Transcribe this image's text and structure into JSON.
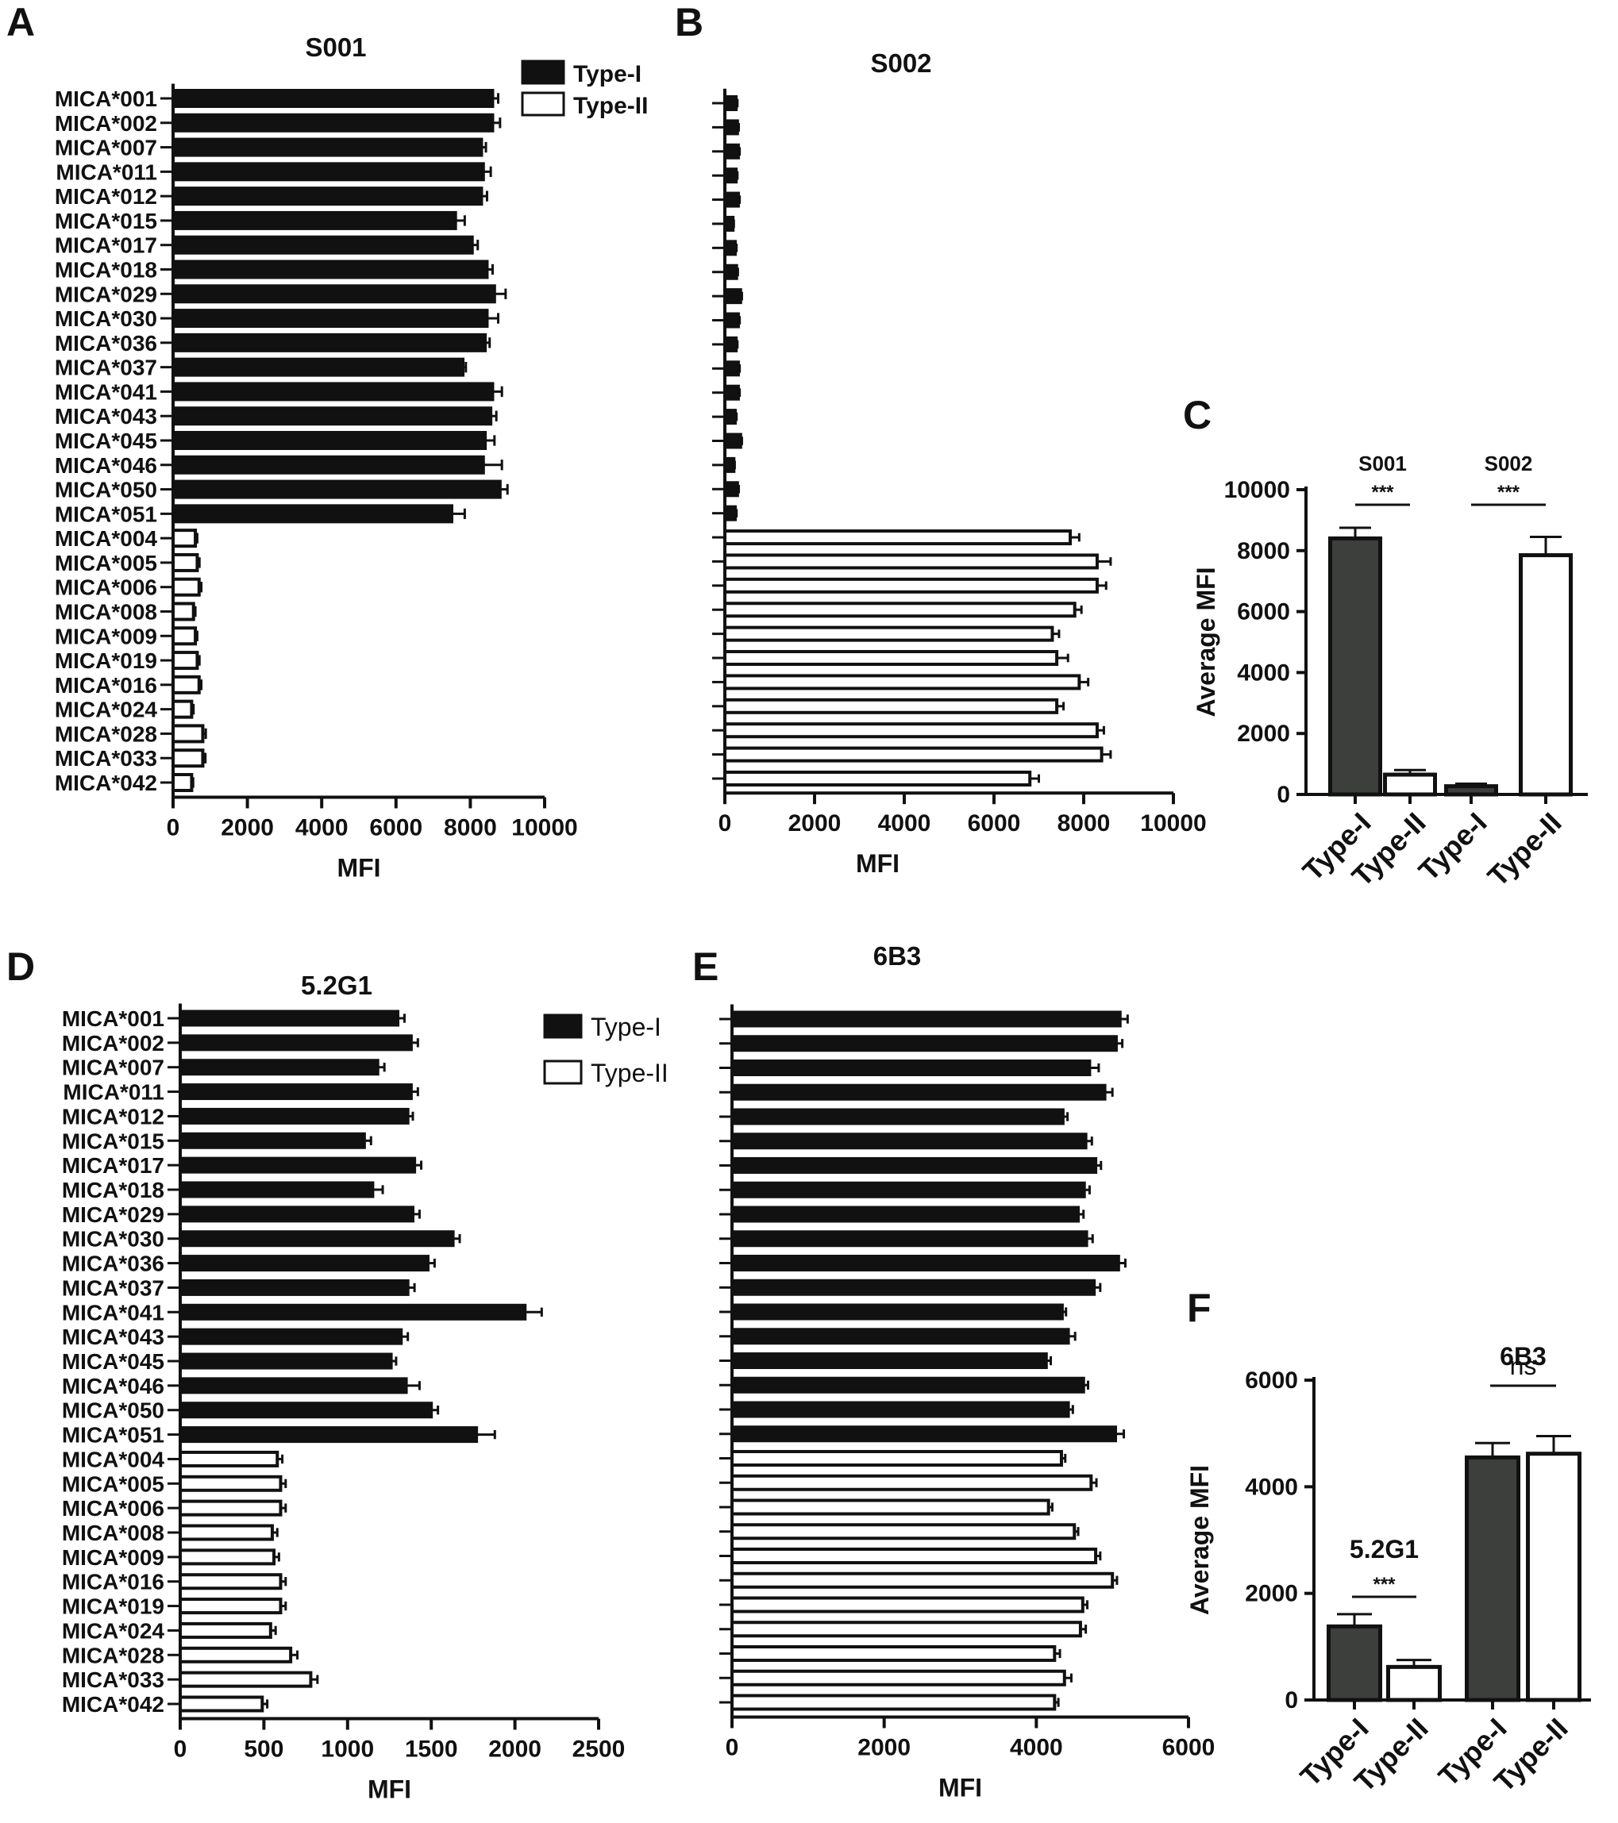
{
  "panel_labels": {
    "A": "A",
    "B": "B",
    "C": "C",
    "D": "D",
    "E": "E",
    "F": "F"
  },
  "colors": {
    "type1": "#111111",
    "type2": "#ffffff",
    "summary_type1": "#3d3f3d",
    "stroke": "#111111"
  },
  "chart_data": [
    {
      "id": "A",
      "type": "bar",
      "orientation": "horizontal",
      "title": "S001",
      "xlabel": "MFI",
      "xlim": [
        0,
        10000
      ],
      "xticks": [
        "0",
        "2000",
        "4000",
        "6000",
        "8000",
        "10000"
      ],
      "categories": [
        "MICA*001",
        "MICA*002",
        "MICA*007",
        "MICA*011",
        "MICA*012",
        "MICA*015",
        "MICA*017",
        "MICA*018",
        "MICA*029",
        "MICA*030",
        "MICA*036",
        "MICA*037",
        "MICA*041",
        "MICA*043",
        "MICA*045",
        "MICA*046",
        "MICA*050",
        "MICA*051",
        "MICA*004",
        "MICA*005",
        "MICA*006",
        "MICA*008",
        "MICA*009",
        "MICA*019",
        "MICA*016",
        "MICA*024",
        "MICA*028",
        "MICA*033",
        "MICA*042"
      ],
      "types": [
        "I",
        "I",
        "I",
        "I",
        "I",
        "I",
        "I",
        "I",
        "I",
        "I",
        "I",
        "I",
        "I",
        "I",
        "I",
        "I",
        "I",
        "I",
        "II",
        "II",
        "II",
        "II",
        "II",
        "II",
        "II",
        "II",
        "II",
        "II",
        "II"
      ],
      "values": [
        8600,
        8600,
        8300,
        8350,
        8300,
        7600,
        8050,
        8450,
        8650,
        8450,
        8400,
        7800,
        8600,
        8550,
        8400,
        8350,
        8800,
        7500,
        600,
        650,
        700,
        550,
        600,
        650,
        700,
        500,
        800,
        800,
        500
      ],
      "errors": [
        150,
        200,
        120,
        200,
        150,
        250,
        150,
        150,
        300,
        300,
        120,
        80,
        250,
        150,
        250,
        500,
        200,
        350,
        50,
        60,
        60,
        50,
        50,
        60,
        60,
        50,
        80,
        70,
        40
      ],
      "legend": [
        {
          "label": "Type-I"
        },
        {
          "label": "Type-II"
        }
      ]
    },
    {
      "id": "B",
      "type": "bar",
      "orientation": "horizontal",
      "title": "S002",
      "xlabel": "MFI",
      "xlim": [
        0,
        10000
      ],
      "xticks": [
        "0",
        "2000",
        "4000",
        "6000",
        "8000",
        "10000"
      ],
      "values": [
        250,
        280,
        300,
        250,
        300,
        180,
        230,
        260,
        350,
        300,
        250,
        300,
        300,
        230,
        350,
        200,
        280,
        230,
        7700,
        8300,
        8300,
        7800,
        7300,
        7400,
        7900,
        7400,
        8300,
        8400,
        6800
      ],
      "errors": [
        30,
        30,
        30,
        30,
        30,
        20,
        30,
        30,
        30,
        30,
        30,
        30,
        30,
        30,
        30,
        20,
        30,
        30,
        200,
        300,
        200,
        150,
        150,
        250,
        200,
        150,
        150,
        200,
        200
      ],
      "types": [
        "I",
        "I",
        "I",
        "I",
        "I",
        "I",
        "I",
        "I",
        "I",
        "I",
        "I",
        "I",
        "I",
        "I",
        "I",
        "I",
        "I",
        "I",
        "II",
        "II",
        "II",
        "II",
        "II",
        "II",
        "II",
        "II",
        "II",
        "II",
        "II"
      ]
    },
    {
      "id": "C",
      "type": "bar",
      "orientation": "vertical",
      "ylabel": "Average MFI",
      "ylim": [
        0,
        10000
      ],
      "yticks": [
        "0",
        "2000",
        "4000",
        "6000",
        "8000",
        "10000"
      ],
      "groups": [
        "S001",
        "S002"
      ],
      "categories": [
        "Type-I",
        "Type-II",
        "Type-I",
        "Type-II"
      ],
      "values": [
        8400,
        650,
        270,
        7850
      ],
      "errors": [
        350,
        150,
        80,
        600
      ],
      "significance": [
        "***",
        "***"
      ]
    },
    {
      "id": "D",
      "type": "bar",
      "orientation": "horizontal",
      "title": "5.2G1",
      "xlabel": "MFI",
      "xlim": [
        0,
        2500
      ],
      "xticks": [
        "0",
        "500",
        "1000",
        "1500",
        "2000",
        "2500"
      ],
      "categories": [
        "MICA*001",
        "MICA*002",
        "MICA*007",
        "MICA*011",
        "MICA*012",
        "MICA*015",
        "MICA*017",
        "MICA*018",
        "MICA*029",
        "MICA*030",
        "MICA*036",
        "MICA*037",
        "MICA*041",
        "MICA*043",
        "MICA*045",
        "MICA*046",
        "MICA*050",
        "MICA*051",
        "MICA*004",
        "MICA*005",
        "MICA*006",
        "MICA*008",
        "MICA*009",
        "MICA*016",
        "MICA*019",
        "MICA*024",
        "MICA*028",
        "MICA*033",
        "MICA*042"
      ],
      "types": [
        "I",
        "I",
        "I",
        "I",
        "I",
        "I",
        "I",
        "I",
        "I",
        "I",
        "I",
        "I",
        "I",
        "I",
        "I",
        "I",
        "I",
        "I",
        "II",
        "II",
        "II",
        "II",
        "II",
        "II",
        "II",
        "II",
        "II",
        "II",
        "II"
      ],
      "values": [
        1300,
        1380,
        1180,
        1380,
        1360,
        1100,
        1400,
        1150,
        1390,
        1630,
        1480,
        1360,
        2060,
        1320,
        1260,
        1350,
        1500,
        1770,
        580,
        600,
        600,
        550,
        560,
        600,
        600,
        540,
        660,
        780,
        490
      ],
      "errors": [
        40,
        40,
        40,
        40,
        30,
        40,
        40,
        60,
        40,
        40,
        40,
        40,
        100,
        40,
        30,
        80,
        40,
        110,
        30,
        30,
        30,
        30,
        30,
        30,
        30,
        30,
        40,
        40,
        30
      ],
      "legend": [
        {
          "label": "Type-I"
        },
        {
          "label": "Type-II"
        }
      ]
    },
    {
      "id": "E",
      "type": "bar",
      "orientation": "horizontal",
      "title": "6B3",
      "xlabel": "MFI",
      "xlim": [
        0,
        6000
      ],
      "xticks": [
        "0",
        "2000",
        "4000",
        "6000"
      ],
      "values": [
        5100,
        5050,
        4700,
        4900,
        4350,
        4650,
        4780,
        4630,
        4550,
        4660,
        5080,
        4760,
        4340,
        4420,
        4130,
        4620,
        4420,
        5040,
        4330,
        4720,
        4160,
        4500,
        4780,
        5000,
        4610,
        4580,
        4240,
        4370,
        4240
      ],
      "errors": [
        100,
        80,
        120,
        100,
        60,
        80,
        70,
        70,
        70,
        80,
        90,
        80,
        50,
        90,
        60,
        60,
        60,
        110,
        50,
        70,
        50,
        50,
        60,
        60,
        60,
        70,
        70,
        90,
        50
      ],
      "types": [
        "I",
        "I",
        "I",
        "I",
        "I",
        "I",
        "I",
        "I",
        "I",
        "I",
        "I",
        "I",
        "I",
        "I",
        "I",
        "I",
        "I",
        "I",
        "II",
        "II",
        "II",
        "II",
        "II",
        "II",
        "II",
        "II",
        "II",
        "II",
        "II"
      ]
    },
    {
      "id": "F",
      "type": "bar",
      "orientation": "vertical",
      "ylabel": "Average MFI",
      "ylim": [
        0,
        6000
      ],
      "yticks": [
        "0",
        "2000",
        "4000",
        "6000"
      ],
      "groups": [
        "5.2G1",
        "6B3"
      ],
      "categories": [
        "Type-I",
        "Type-II",
        "Type-I",
        "Type-II"
      ],
      "values": [
        1380,
        620,
        4550,
        4620
      ],
      "errors": [
        230,
        130,
        270,
        330
      ],
      "significance": [
        "***",
        "ns"
      ]
    }
  ]
}
